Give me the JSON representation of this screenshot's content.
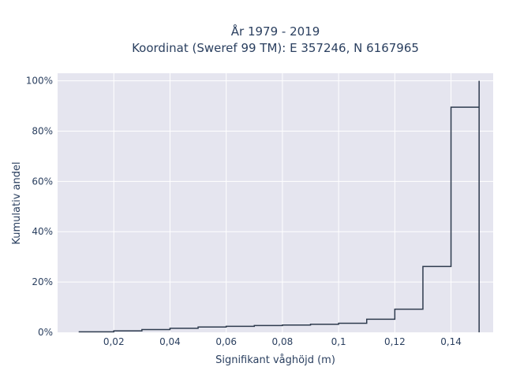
{
  "chart_data": {
    "type": "line",
    "title_line1": "År 1979 - 2019",
    "title_line2": "Koordinat (Sweref 99 TM): E 357246, N 6167965",
    "xlabel": "Signifikant våghöjd (m)",
    "ylabel": "Kumulativ andel",
    "xlim": [
      0,
      0.155
    ],
    "ylim": [
      0,
      1.03
    ],
    "x_ticks": [
      0.02,
      0.04,
      0.06,
      0.08,
      0.1,
      0.12,
      0.14
    ],
    "x_tick_labels": [
      "0,02",
      "0,04",
      "0,06",
      "0,08",
      "0,1",
      "0,12",
      "0,14"
    ],
    "y_ticks": [
      0,
      0.2,
      0.4,
      0.6,
      0.8,
      1.0
    ],
    "y_tick_labels": [
      "0%",
      "20%",
      "40%",
      "60%",
      "80%",
      "100%"
    ],
    "grid": true,
    "plot_background": "#e5e5ef",
    "grid_color": "#ffffff",
    "line_color": "#2e3b4e",
    "step_x": [
      0.0075,
      0.02,
      0.03,
      0.04,
      0.05,
      0.06,
      0.07,
      0.08,
      0.09,
      0.1,
      0.11,
      0.12,
      0.13,
      0.14,
      0.15
    ],
    "step_y": [
      0.002,
      0.006,
      0.011,
      0.016,
      0.021,
      0.024,
      0.027,
      0.029,
      0.032,
      0.036,
      0.052,
      0.092,
      0.262,
      0.895,
      1.0
    ]
  }
}
